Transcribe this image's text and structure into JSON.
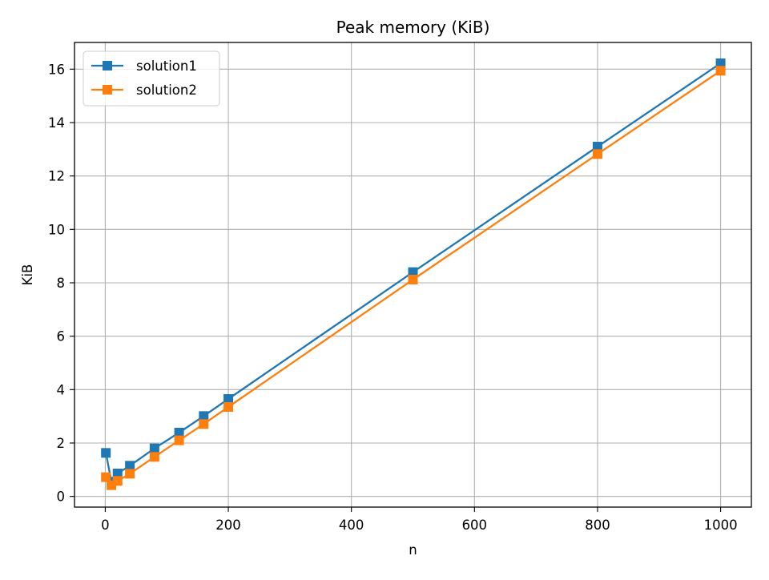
{
  "chart_data": {
    "type": "line",
    "title": "Peak memory (KiB)",
    "xlabel": "n",
    "ylabel": "KiB",
    "xlim": [
      -50,
      1050
    ],
    "ylim": [
      -0.4,
      17.0
    ],
    "x_ticks": [
      0,
      200,
      400,
      600,
      800,
      1000
    ],
    "x_tick_labels": [
      "0",
      "200",
      "400",
      "600",
      "800",
      "1000"
    ],
    "y_ticks": [
      0,
      2,
      4,
      6,
      8,
      10,
      12,
      14,
      16
    ],
    "y_tick_labels": [
      "0",
      "2",
      "4",
      "6",
      "8",
      "10",
      "12",
      "14",
      "16"
    ],
    "grid": true,
    "legend_position": "top-left",
    "marker": "square",
    "series": [
      {
        "name": "solution1",
        "color": "#1f77b4",
        "x": [
          1,
          10,
          20,
          40,
          80,
          120,
          160,
          200,
          500,
          800,
          1000
        ],
        "y": [
          1.63,
          0.55,
          0.86,
          1.15,
          1.8,
          2.39,
          3.01,
          3.65,
          8.4,
          13.1,
          16.22
        ]
      },
      {
        "name": "solution2",
        "color": "#ff7f0e",
        "x": [
          1,
          10,
          20,
          40,
          80,
          120,
          160,
          200,
          500,
          800,
          1000
        ],
        "y": [
          0.72,
          0.42,
          0.58,
          0.85,
          1.48,
          2.1,
          2.71,
          3.35,
          8.12,
          12.82,
          15.94
        ]
      }
    ]
  }
}
